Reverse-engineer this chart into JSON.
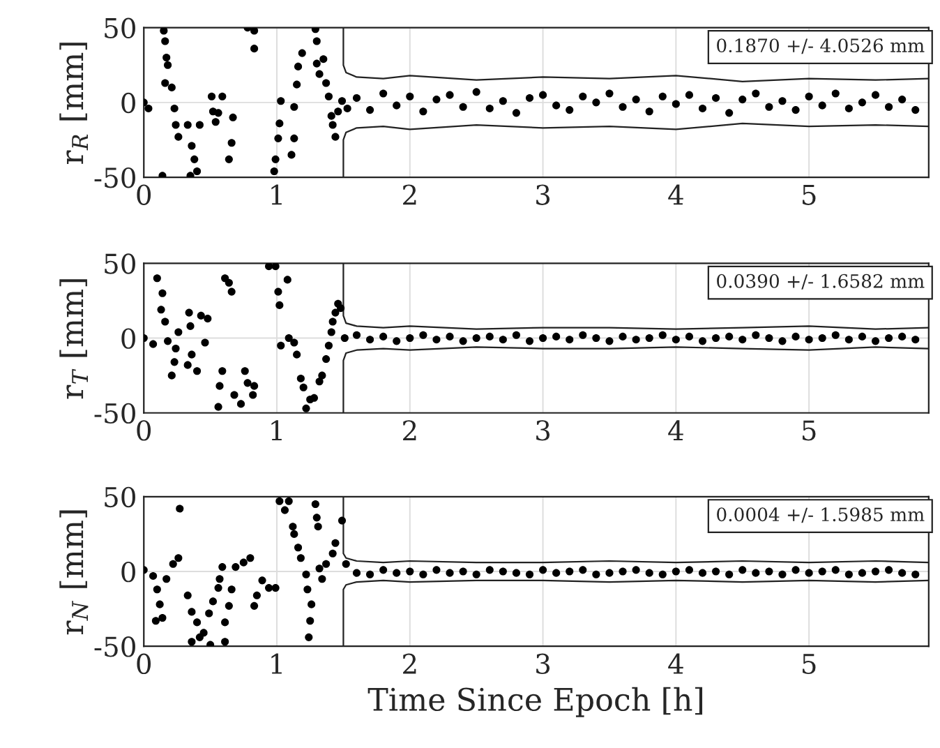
{
  "chart_data": [
    {
      "type": "scatter",
      "ylabel": "r$_{R}$ [mm]",
      "xlim": [
        0,
        5.9
      ],
      "xticks": [
        0,
        1,
        2,
        3,
        4,
        5
      ],
      "ylim": [
        -50,
        50
      ],
      "yticks": [
        -50,
        0,
        50
      ],
      "grid": true,
      "marker": "circle",
      "annotations": [
        "0.1870 +/- 4.0526 mm"
      ],
      "tick_labels": true,
      "series": [
        {
          "color": "#000000",
          "x": [
            0,
            0.035,
            0.15,
            0.16,
            0.17,
            0.18,
            0.16,
            0.21,
            0.23,
            0.24,
            0.26,
            0.33,
            0.36,
            0.38,
            0.35,
            0.14,
            0.4,
            0.42,
            0.51,
            0.52,
            0.56,
            0.59,
            0.54,
            0.67,
            0.66,
            0.64,
            0.78,
            0.83,
            0.83,
            0.98,
            0.99,
            1.01,
            1.02,
            1.03,
            1.11,
            1.13,
            1.13,
            1.15,
            1.16,
            1.19,
            1.29,
            1.3,
            1.3,
            1.32,
            1.35,
            1.37,
            1.39,
            1.41,
            1.42,
            1.44,
            1.46,
            1.49,
            1.53,
            1.6,
            1.7,
            1.8,
            1.9,
            2.0,
            2.1,
            2.2,
            2.3,
            2.4,
            2.5,
            2.6,
            2.7,
            2.8,
            2.9,
            3.0,
            3.1,
            3.2,
            3.3,
            3.4,
            3.5,
            3.6,
            3.7,
            3.8,
            3.9,
            4.0,
            4.1,
            4.2,
            4.3,
            4.4,
            4.5,
            4.6,
            4.7,
            4.8,
            4.9,
            5.0,
            5.1,
            5.2,
            5.3,
            5.4,
            5.5,
            5.6,
            5.7,
            5.8
          ],
          "values": [
            0,
            -4,
            48,
            41,
            30,
            25,
            13,
            10,
            -4,
            -15,
            -23,
            -15,
            -29,
            -38,
            -49,
            -49,
            -46,
            -15,
            4,
            -6,
            -7,
            4,
            -13,
            -10,
            -27,
            -38,
            50,
            48,
            36,
            -46,
            -38,
            -24,
            -14,
            1,
            -35,
            -24,
            -3,
            12,
            24,
            33,
            49,
            41,
            26,
            19,
            29,
            13,
            4,
            -9,
            -15,
            -23,
            -6,
            1,
            -4,
            3,
            -5,
            6,
            -2,
            4,
            -6,
            2,
            5,
            -3,
            7,
            -4,
            1,
            -7,
            3,
            5,
            -2,
            -5,
            4,
            0,
            6,
            -3,
            2,
            -6,
            4,
            -1,
            5,
            -4,
            3,
            -7,
            2,
            6,
            -3,
            1,
            -5,
            4,
            -2,
            6,
            -4,
            0,
            5,
            -3,
            2,
            -5
          ]
        },
        {
          "type": "line",
          "color": "#222222",
          "x": [
            1.5,
            1.5,
            1.52,
            1.6,
            1.8,
            2.0,
            2.5,
            3.0,
            3.5,
            4.0,
            4.5,
            5.0,
            5.5,
            5.9
          ],
          "marker": "none",
          "values": [
            50,
            25,
            20,
            17,
            16,
            18,
            15,
            17,
            16,
            18,
            14,
            16,
            15,
            16
          ]
        },
        {
          "type": "line",
          "color": "#222222",
          "x": [
            1.5,
            1.5,
            1.52,
            1.6,
            1.8,
            2.0,
            2.5,
            3.0,
            3.5,
            4.0,
            4.5,
            5.0,
            5.5,
            5.9
          ],
          "marker": "none",
          "values": [
            -50,
            -25,
            -20,
            -17,
            -16,
            -18,
            -15,
            -17,
            -16,
            -18,
            -14,
            -16,
            -15,
            -16
          ]
        }
      ]
    },
    {
      "type": "scatter",
      "ylabel": "r$_{T}$ [mm]",
      "xlim": [
        0,
        5.9
      ],
      "xticks": [
        0,
        1,
        2,
        3,
        4,
        5
      ],
      "ylim": [
        -50,
        50
      ],
      "yticks": [
        -50,
        0,
        50
      ],
      "grid": true,
      "marker": "circle",
      "annotations": [
        "0.0390 +/- 1.6582 mm"
      ],
      "tick_labels": true,
      "series": [
        {
          "color": "#000000",
          "x": [
            0,
            0.07,
            0.1,
            0.14,
            0.13,
            0.16,
            0.18,
            0.21,
            0.23,
            0.26,
            0.24,
            0.33,
            0.35,
            0.34,
            0.36,
            0.4,
            0.43,
            0.46,
            0.48,
            0.56,
            0.57,
            0.59,
            0.61,
            0.64,
            0.66,
            0.68,
            0.73,
            0.76,
            0.78,
            0.82,
            0.83,
            0.94,
            0.99,
            1.01,
            1.02,
            1.03,
            1.08,
            1.09,
            1.13,
            1.15,
            1.18,
            1.2,
            1.22,
            1.25,
            1.28,
            1.32,
            1.34,
            1.37,
            1.39,
            1.41,
            1.42,
            1.44,
            1.46,
            1.48,
            1.51,
            1.6,
            1.7,
            1.8,
            1.9,
            2.0,
            2.1,
            2.2,
            2.3,
            2.4,
            2.5,
            2.6,
            2.7,
            2.8,
            2.9,
            3.0,
            3.1,
            3.2,
            3.3,
            3.4,
            3.5,
            3.6,
            3.7,
            3.8,
            3.9,
            4.0,
            4.1,
            4.2,
            4.3,
            4.4,
            4.5,
            4.6,
            4.7,
            4.8,
            4.9,
            5.0,
            5.1,
            5.2,
            5.3,
            5.4,
            5.5,
            5.6,
            5.7,
            5.8
          ],
          "values": [
            0,
            -4,
            40,
            30,
            19,
            11,
            -2,
            -25,
            -16,
            4,
            -7,
            -18,
            8,
            17,
            -11,
            -22,
            15,
            -3,
            13,
            -46,
            -32,
            -22,
            40,
            37,
            31,
            -38,
            -44,
            -22,
            -30,
            -38,
            -32,
            48,
            48,
            31,
            22,
            -5,
            39,
            0,
            -3,
            -11,
            -27,
            -33,
            -47,
            -41,
            -40,
            -29,
            -25,
            -14,
            -5,
            4,
            11,
            17,
            23,
            20,
            0,
            2,
            -1,
            1,
            -2,
            0,
            2,
            -1,
            1,
            -2,
            0,
            1,
            -1,
            2,
            -2,
            0,
            1,
            -1,
            2,
            0,
            -2,
            1,
            -1,
            0,
            2,
            -1,
            1,
            -2,
            0,
            1,
            -1,
            2,
            0,
            -2,
            1,
            -1,
            0,
            2,
            -1,
            1,
            -2,
            0,
            1,
            -1
          ]
        },
        {
          "type": "line",
          "color": "#222222",
          "x": [
            1.5,
            1.5,
            1.52,
            1.6,
            1.8,
            2.0,
            2.5,
            3.0,
            3.5,
            4.0,
            4.5,
            5.0,
            5.5,
            5.9
          ],
          "marker": "none",
          "values": [
            50,
            15,
            10,
            8,
            7,
            8,
            6,
            7,
            7,
            6,
            7,
            8,
            6,
            7
          ]
        },
        {
          "type": "line",
          "color": "#222222",
          "x": [
            1.5,
            1.5,
            1.52,
            1.6,
            1.8,
            2.0,
            2.5,
            3.0,
            3.5,
            4.0,
            4.5,
            5.0,
            5.5,
            5.9
          ],
          "marker": "none",
          "values": [
            -50,
            -15,
            -10,
            -8,
            -7,
            -8,
            -6,
            -7,
            -7,
            -6,
            -7,
            -8,
            -6,
            -7
          ]
        }
      ]
    },
    {
      "type": "scatter",
      "ylabel": "r$_{N}$ [mm]",
      "xlabel": "Time Since Epoch [h]",
      "xlim": [
        0,
        5.9
      ],
      "xticks": [
        0,
        1,
        2,
        3,
        4,
        5
      ],
      "ylim": [
        -50,
        50
      ],
      "yticks": [
        -50,
        0,
        50
      ],
      "grid": true,
      "marker": "circle",
      "annotations": [
        "0.0004 +/- 1.5985 mm"
      ],
      "tick_labels": true,
      "series": [
        {
          "color": "#000000",
          "x": [
            0,
            0.07,
            0.1,
            0.12,
            0.09,
            0.14,
            0.17,
            0.22,
            0.26,
            0.27,
            0.33,
            0.36,
            0.36,
            0.4,
            0.42,
            0.45,
            0.49,
            0.5,
            0.52,
            0.56,
            0.57,
            0.59,
            0.61,
            0.61,
            0.64,
            0.66,
            0.69,
            0.75,
            0.8,
            0.83,
            0.85,
            0.89,
            0.94,
            0.99,
            1.02,
            1.06,
            1.09,
            1.12,
            1.13,
            1.16,
            1.18,
            1.22,
            1.23,
            1.26,
            1.25,
            1.24,
            1.29,
            1.3,
            1.31,
            1.32,
            1.34,
            1.37,
            1.42,
            1.44,
            1.49,
            1.52,
            1.6,
            1.7,
            1.8,
            1.9,
            2.0,
            2.1,
            2.2,
            2.3,
            2.4,
            2.5,
            2.6,
            2.7,
            2.8,
            2.9,
            3.0,
            3.1,
            3.2,
            3.3,
            3.4,
            3.5,
            3.6,
            3.7,
            3.8,
            3.9,
            4.0,
            4.1,
            4.2,
            4.3,
            4.4,
            4.5,
            4.6,
            4.7,
            4.8,
            4.9,
            5.0,
            5.1,
            5.2,
            5.3,
            5.4,
            5.5,
            5.6,
            5.7,
            5.8
          ],
          "values": [
            1,
            -3,
            -12,
            -22,
            -33,
            -31,
            -5,
            5,
            9,
            42,
            -16,
            -27,
            -47,
            -34,
            -44,
            -41,
            -28,
            -49,
            -20,
            -11,
            -5,
            3,
            -34,
            -47,
            -23,
            -12,
            3,
            6,
            9,
            -23,
            -16,
            -6,
            -11,
            -11,
            47,
            41,
            47,
            30,
            25,
            16,
            9,
            -2,
            -12,
            -22,
            -33,
            -44,
            45,
            36,
            30,
            2,
            -5,
            5,
            12,
            19,
            34,
            5,
            -1,
            -2,
            1,
            -1,
            0,
            -2,
            1,
            -1,
            0,
            -2,
            1,
            0,
            -1,
            -2,
            1,
            -1,
            0,
            1,
            -2,
            -1,
            0,
            1,
            -1,
            -2,
            0,
            1,
            -1,
            0,
            -2,
            1,
            -1,
            0,
            -2,
            1,
            -1,
            0,
            1,
            -2,
            -1,
            0,
            1,
            -1,
            -2
          ]
        },
        {
          "type": "line",
          "color": "#222222",
          "x": [
            1.5,
            1.5,
            1.52,
            1.6,
            1.8,
            2.0,
            2.5,
            3.0,
            3.5,
            4.0,
            4.5,
            5.0,
            5.5,
            5.9
          ],
          "marker": "none",
          "values": [
            50,
            12,
            9,
            7,
            6,
            7,
            6,
            6,
            7,
            6,
            7,
            6,
            7,
            6
          ]
        },
        {
          "type": "line",
          "color": "#222222",
          "x": [
            1.5,
            1.5,
            1.52,
            1.6,
            1.8,
            2.0,
            2.5,
            3.0,
            3.5,
            4.0,
            4.5,
            5.0,
            5.5,
            5.9
          ],
          "marker": "none",
          "values": [
            -50,
            -12,
            -9,
            -7,
            -6,
            -7,
            -6,
            -6,
            -7,
            -6,
            -7,
            -6,
            -7,
            -6
          ]
        }
      ]
    }
  ]
}
